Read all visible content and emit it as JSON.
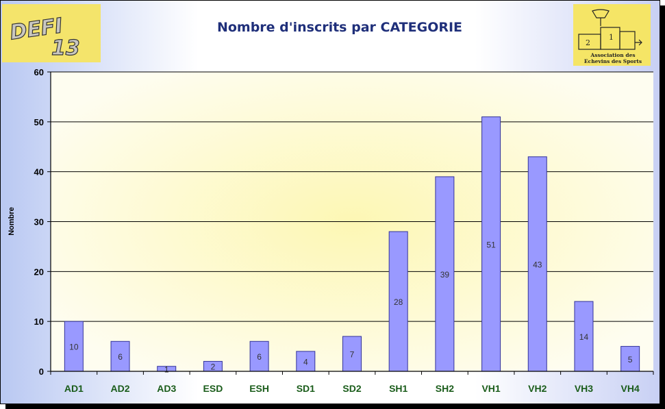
{
  "header": {
    "title": "Nombre d'inscrits par CATEGORIE",
    "logo_left": {
      "icon": "defi-13-logo",
      "text_line1": "DEFI",
      "text_line2": "13"
    },
    "logo_right": {
      "icon": "podium-logo",
      "text_line1": "Association des",
      "text_line2": "Echevins des Sports"
    }
  },
  "colors": {
    "bar_fill": "#9999ff",
    "bar_stroke": "#333399",
    "plot_bg": "#fefdf0",
    "plot_glow": "#fdf7b4",
    "category_label": "#1a5c1a",
    "title": "#1f2f7a"
  },
  "chart_data": {
    "type": "bar",
    "title": "Nombre d'inscrits par CATEGORIE",
    "xlabel": "",
    "ylabel": "Nombre",
    "ylim": [
      0,
      60
    ],
    "yticks": [
      0,
      10,
      20,
      30,
      40,
      50,
      60
    ],
    "grid": true,
    "legend": "none",
    "categories": [
      "AD1",
      "AD2",
      "AD3",
      "ESD",
      "ESH",
      "SD1",
      "SD2",
      "SH1",
      "SH2",
      "VH1",
      "VH2",
      "VH3",
      "VH4"
    ],
    "values": [
      10,
      6,
      1,
      2,
      6,
      4,
      7,
      28,
      39,
      51,
      43,
      14,
      5
    ]
  }
}
